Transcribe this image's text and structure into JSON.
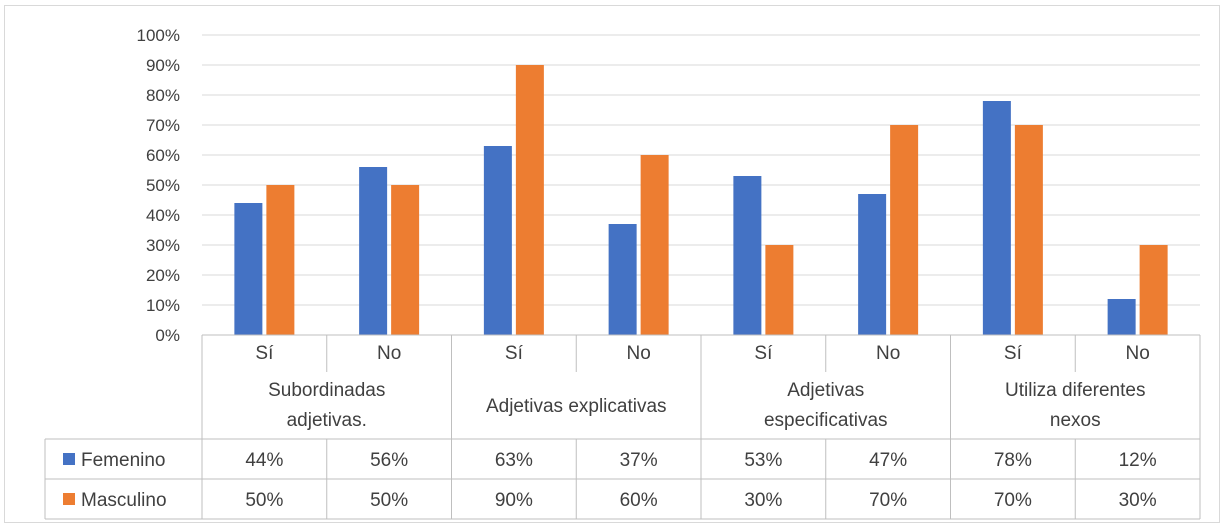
{
  "chart_data": {
    "type": "bar",
    "ylim": [
      0,
      100
    ],
    "y_ticks": [
      "0%",
      "10%",
      "20%",
      "30%",
      "40%",
      "50%",
      "60%",
      "70%",
      "80%",
      "90%",
      "100%"
    ],
    "groups": [
      {
        "label": "Subordinadas adjetivas.",
        "lines": [
          "Subordinadas",
          "adjetivas."
        ]
      },
      {
        "label": "Adjetivas explicativas",
        "lines": [
          "Adjetivas explicativas"
        ]
      },
      {
        "label": "Adjetivas especificativas",
        "lines": [
          "Adjetivas",
          "especificativas"
        ]
      },
      {
        "label": "Utiliza diferentes nexos",
        "lines": [
          "Utiliza diferentes",
          "nexos"
        ]
      }
    ],
    "categories": [
      "Sí",
      "No",
      "Sí",
      "No",
      "Sí",
      "No",
      "Sí",
      "No"
    ],
    "series": [
      {
        "name": "Femenino",
        "color": "#4472c4",
        "values": [
          44,
          56,
          63,
          37,
          53,
          47,
          78,
          12
        ],
        "labels": [
          "44%",
          "56%",
          "63%",
          "37%",
          "53%",
          "47%",
          "78%",
          "12%"
        ]
      },
      {
        "name": "Masculino",
        "color": "#ed7d31",
        "values": [
          50,
          50,
          90,
          60,
          30,
          70,
          70,
          30
        ],
        "labels": [
          "50%",
          "50%",
          "90%",
          "60%",
          "30%",
          "70%",
          "70%",
          "30%"
        ]
      }
    ],
    "grid": true,
    "legend": "data-table"
  }
}
